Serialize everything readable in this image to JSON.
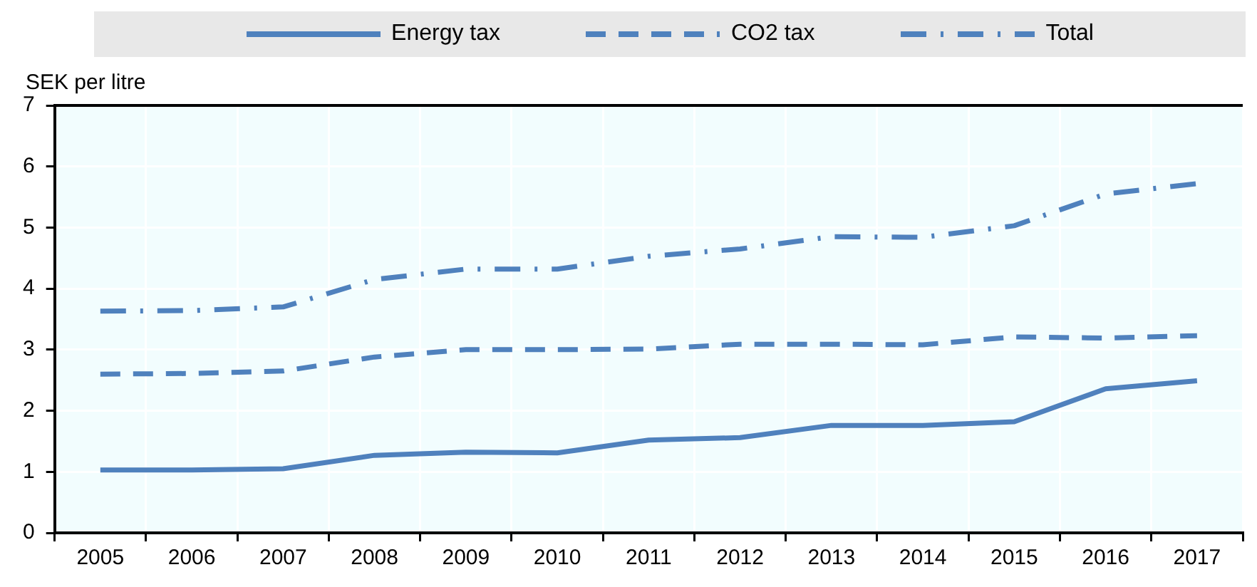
{
  "chart_data": {
    "type": "line",
    "ylabel": "SEK per litre",
    "categories": [
      "2005",
      "2006",
      "2007",
      "2008",
      "2009",
      "2010",
      "2011",
      "2012",
      "2013",
      "2014",
      "2015",
      "2016",
      "2017"
    ],
    "series": [
      {
        "name": "Energy tax",
        "color": "#4f81bd",
        "line_style": "solid",
        "values": [
          1.03,
          1.03,
          1.05,
          1.27,
          1.32,
          1.31,
          1.52,
          1.56,
          1.76,
          1.76,
          1.82,
          2.36,
          2.49
        ]
      },
      {
        "name": "CO2 tax",
        "color": "#4f81bd",
        "line_style": "dashed",
        "values": [
          2.6,
          2.61,
          2.65,
          2.88,
          3.0,
          3.0,
          3.01,
          3.09,
          3.09,
          3.08,
          3.21,
          3.19,
          3.23
        ]
      },
      {
        "name": "Total",
        "color": "#4f81bd",
        "line_style": "dashdot",
        "values": [
          3.63,
          3.64,
          3.7,
          4.15,
          4.32,
          4.32,
          4.53,
          4.65,
          4.85,
          4.84,
          5.03,
          5.55,
          5.72
        ]
      }
    ],
    "ylim": [
      0,
      7
    ],
    "yticks": [
      0,
      1,
      2,
      3,
      4,
      5,
      6,
      7
    ],
    "grid": true,
    "legend": "top",
    "marker": "none"
  }
}
